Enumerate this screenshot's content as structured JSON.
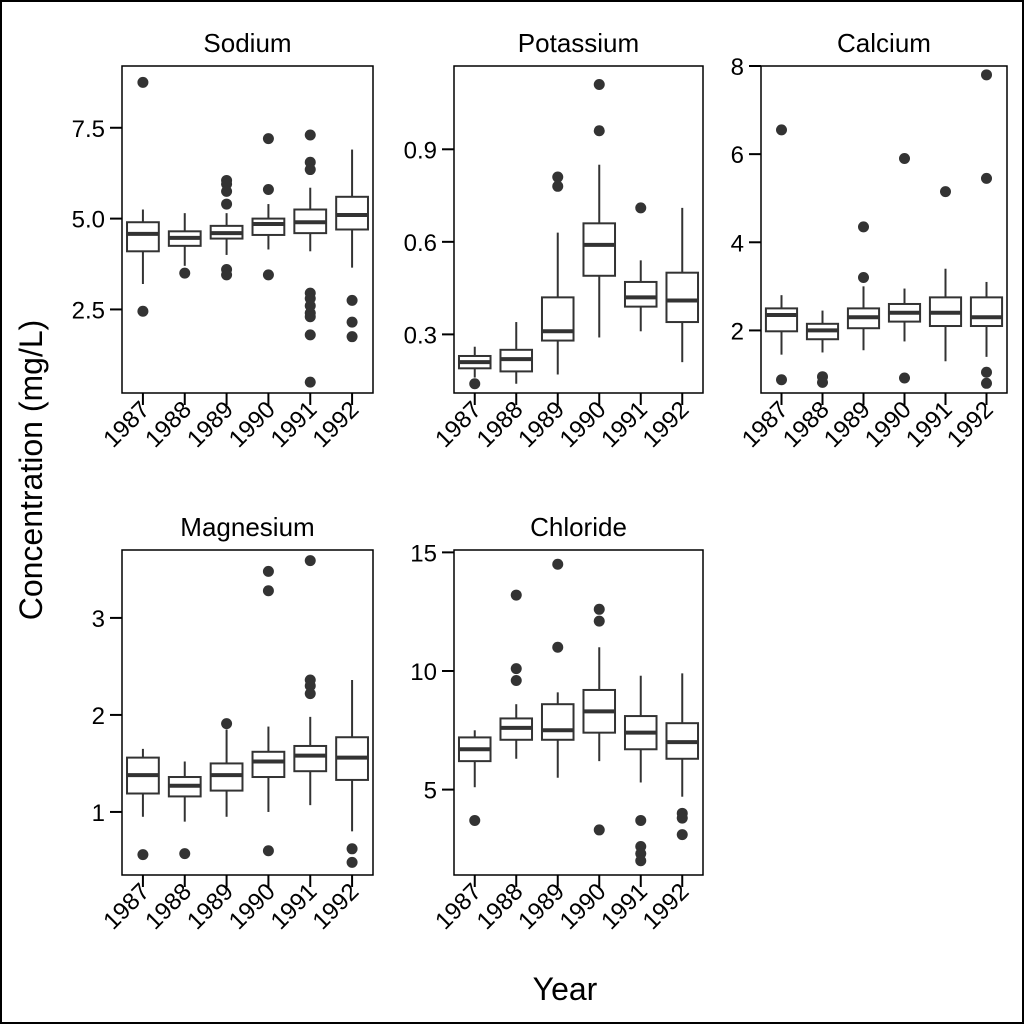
{
  "figure": {
    "ylabel": "Concentration (mg/L)",
    "xlabel": "Year",
    "colors": {
      "box": "#333333",
      "axis": "#000000",
      "outlier": "#333333",
      "background": "#ffffff"
    }
  },
  "chart_data": [
    {
      "type": "box",
      "title": "Sodium",
      "categories": [
        "1987",
        "1988",
        "1989",
        "1990",
        "1991",
        "1992"
      ],
      "ylim": [
        0.2,
        9.2
      ],
      "yticks": [
        2.5,
        5.0,
        7.5
      ],
      "ytick_labels": [
        "2.5",
        "5.0",
        "7.5"
      ],
      "boxes": [
        {
          "category": "1987",
          "whisker_low": 3.2,
          "q1": 4.1,
          "median": 4.58,
          "q3": 4.9,
          "whisker_high": 5.25,
          "outliers": [
            8.75,
            2.45
          ]
        },
        {
          "category": "1988",
          "whisker_low": 3.7,
          "q1": 4.25,
          "median": 4.47,
          "q3": 4.65,
          "whisker_high": 5.15,
          "outliers": [
            3.5
          ]
        },
        {
          "category": "1989",
          "whisker_low": 4.0,
          "q1": 4.45,
          "median": 4.6,
          "q3": 4.8,
          "whisker_high": 5.15,
          "outliers": [
            6.05,
            5.95,
            5.75,
            5.4,
            3.6,
            3.45
          ]
        },
        {
          "category": "1990",
          "whisker_low": 4.15,
          "q1": 4.55,
          "median": 4.85,
          "q3": 5.0,
          "whisker_high": 5.4,
          "outliers": [
            7.2,
            5.8,
            3.45
          ]
        },
        {
          "category": "1991",
          "whisker_low": 4.1,
          "q1": 4.6,
          "median": 4.9,
          "q3": 5.25,
          "whisker_high": 5.85,
          "outliers": [
            7.3,
            6.55,
            6.35,
            2.95,
            2.8,
            2.6,
            2.4,
            2.3,
            1.8,
            0.5
          ]
        },
        {
          "category": "1992",
          "whisker_low": 3.65,
          "q1": 4.7,
          "median": 5.1,
          "q3": 5.6,
          "whisker_high": 6.9,
          "outliers": [
            2.75,
            2.15,
            1.75
          ]
        }
      ]
    },
    {
      "type": "box",
      "title": "Potassium",
      "categories": [
        "1987",
        "1988",
        "1989",
        "1990",
        "1991",
        "1992"
      ],
      "ylim": [
        0.11,
        1.17
      ],
      "yticks": [
        0.3,
        0.6,
        0.9
      ],
      "ytick_labels": [
        "0.3",
        "0.6",
        "0.9"
      ],
      "boxes": [
        {
          "category": "1987",
          "whisker_low": 0.16,
          "q1": 0.19,
          "median": 0.21,
          "q3": 0.23,
          "whisker_high": 0.26,
          "outliers": [
            0.14
          ]
        },
        {
          "category": "1988",
          "whisker_low": 0.14,
          "q1": 0.18,
          "median": 0.22,
          "q3": 0.25,
          "whisker_high": 0.34,
          "outliers": []
        },
        {
          "category": "1989",
          "whisker_low": 0.17,
          "q1": 0.28,
          "median": 0.31,
          "q3": 0.42,
          "whisker_high": 0.63,
          "outliers": [
            0.81,
            0.78
          ]
        },
        {
          "category": "1990",
          "whisker_low": 0.29,
          "q1": 0.49,
          "median": 0.59,
          "q3": 0.66,
          "whisker_high": 0.85,
          "outliers": [
            1.11,
            0.96
          ]
        },
        {
          "category": "1991",
          "whisker_low": 0.31,
          "q1": 0.39,
          "median": 0.42,
          "q3": 0.47,
          "whisker_high": 0.54,
          "outliers": [
            0.71
          ]
        },
        {
          "category": "1992",
          "whisker_low": 0.21,
          "q1": 0.34,
          "median": 0.41,
          "q3": 0.5,
          "whisker_high": 0.71,
          "outliers": []
        }
      ]
    },
    {
      "type": "box",
      "title": "Calcium",
      "categories": [
        "1987",
        "1988",
        "1989",
        "1990",
        "1991",
        "1992"
      ],
      "ylim": [
        0.58,
        8.0
      ],
      "yticks": [
        2,
        4,
        6,
        8
      ],
      "ytick_labels": [
        "2",
        "4",
        "6",
        "8"
      ],
      "boxes": [
        {
          "category": "1987",
          "whisker_low": 1.45,
          "q1": 1.98,
          "median": 2.35,
          "q3": 2.5,
          "whisker_high": 2.8,
          "outliers": [
            6.55,
            0.88
          ]
        },
        {
          "category": "1988",
          "whisker_low": 1.5,
          "q1": 1.8,
          "median": 2.0,
          "q3": 2.15,
          "whisker_high": 2.45,
          "outliers": [
            0.95,
            0.82
          ]
        },
        {
          "category": "1989",
          "whisker_low": 1.55,
          "q1": 2.05,
          "median": 2.3,
          "q3": 2.5,
          "whisker_high": 3.0,
          "outliers": [
            4.35,
            3.2
          ]
        },
        {
          "category": "1990",
          "whisker_low": 1.75,
          "q1": 2.2,
          "median": 2.4,
          "q3": 2.6,
          "whisker_high": 2.95,
          "outliers": [
            5.9,
            0.92
          ]
        },
        {
          "category": "1991",
          "whisker_low": 1.3,
          "q1": 2.1,
          "median": 2.4,
          "q3": 2.75,
          "whisker_high": 3.4,
          "outliers": [
            5.15
          ]
        },
        {
          "category": "1992",
          "whisker_low": 1.4,
          "q1": 2.1,
          "median": 2.3,
          "q3": 2.75,
          "whisker_high": 3.1,
          "outliers": [
            7.8,
            5.45,
            1.05,
            0.8
          ]
        }
      ]
    },
    {
      "type": "box",
      "title": "Magnesium",
      "categories": [
        "1987",
        "1988",
        "1989",
        "1990",
        "1991",
        "1992"
      ],
      "ylim": [
        0.35,
        3.7
      ],
      "yticks": [
        1,
        2,
        3
      ],
      "ytick_labels": [
        "1",
        "2",
        "3"
      ],
      "boxes": [
        {
          "category": "1987",
          "whisker_low": 0.95,
          "q1": 1.19,
          "median": 1.38,
          "q3": 1.56,
          "whisker_high": 1.65,
          "outliers": [
            0.56
          ]
        },
        {
          "category": "1988",
          "whisker_low": 0.9,
          "q1": 1.16,
          "median": 1.27,
          "q3": 1.36,
          "whisker_high": 1.52,
          "outliers": [
            0.57
          ]
        },
        {
          "category": "1989",
          "whisker_low": 0.95,
          "q1": 1.22,
          "median": 1.38,
          "q3": 1.5,
          "whisker_high": 1.85,
          "outliers": [
            1.91
          ]
        },
        {
          "category": "1990",
          "whisker_low": 1.0,
          "q1": 1.36,
          "median": 1.52,
          "q3": 1.62,
          "whisker_high": 1.88,
          "outliers": [
            3.48,
            3.28,
            0.6
          ]
        },
        {
          "category": "1991",
          "whisker_low": 1.07,
          "q1": 1.42,
          "median": 1.58,
          "q3": 1.68,
          "whisker_high": 1.98,
          "outliers": [
            3.59,
            2.36,
            2.3,
            2.22
          ]
        },
        {
          "category": "1992",
          "whisker_low": 0.8,
          "q1": 1.33,
          "median": 1.56,
          "q3": 1.77,
          "whisker_high": 2.36,
          "outliers": [
            0.62,
            0.48
          ]
        }
      ]
    },
    {
      "type": "box",
      "title": "Chloride",
      "categories": [
        "1987",
        "1988",
        "1989",
        "1990",
        "1991",
        "1992"
      ],
      "ylim": [
        1.4,
        15.1
      ],
      "yticks": [
        5,
        10,
        15
      ],
      "ytick_labels": [
        "5",
        "10",
        "15"
      ],
      "boxes": [
        {
          "category": "1987",
          "whisker_low": 5.1,
          "q1": 6.2,
          "median": 6.7,
          "q3": 7.2,
          "whisker_high": 7.5,
          "outliers": [
            3.7
          ]
        },
        {
          "category": "1988",
          "whisker_low": 6.3,
          "q1": 7.1,
          "median": 7.6,
          "q3": 8.0,
          "whisker_high": 8.6,
          "outliers": [
            13.2,
            10.1,
            9.6
          ]
        },
        {
          "category": "1989",
          "whisker_low": 5.5,
          "q1": 7.1,
          "median": 7.5,
          "q3": 8.6,
          "whisker_high": 9.1,
          "outliers": [
            14.5,
            11.0
          ]
        },
        {
          "category": "1990",
          "whisker_low": 6.2,
          "q1": 7.4,
          "median": 8.3,
          "q3": 9.2,
          "whisker_high": 11.0,
          "outliers": [
            12.6,
            12.1,
            3.3
          ]
        },
        {
          "category": "1991",
          "whisker_low": 5.3,
          "q1": 6.7,
          "median": 7.4,
          "q3": 8.1,
          "whisker_high": 9.8,
          "outliers": [
            3.7,
            2.6,
            2.3,
            2.0
          ]
        },
        {
          "category": "1992",
          "whisker_low": 4.7,
          "q1": 6.3,
          "median": 7.0,
          "q3": 7.8,
          "whisker_high": 9.9,
          "outliers": [
            4.0,
            3.8,
            3.1
          ]
        }
      ]
    }
  ]
}
